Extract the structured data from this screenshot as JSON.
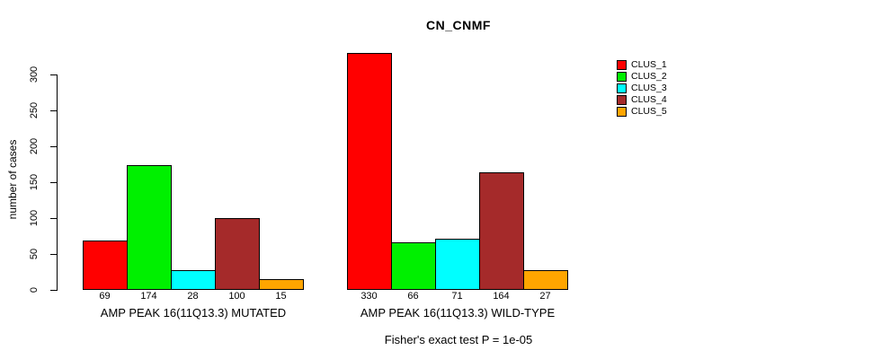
{
  "chart_data": {
    "type": "bar",
    "title": "CN_CNMF",
    "ylabel": "number of cases",
    "xlabel": "",
    "ylim": [
      0,
      330
    ],
    "yticks": [
      0,
      50,
      100,
      150,
      200,
      250,
      300
    ],
    "grid": false,
    "legend_position": "top-right",
    "legend_labels": [
      "CLUS_1",
      "CLUS_2",
      "CLUS_3",
      "CLUS_4",
      "CLUS_5"
    ],
    "colors": [
      "#FF0000",
      "#00F000",
      "#00FFFF",
      "#A52A2A",
      "#FFA500"
    ],
    "categories": [
      "AMP PEAK 16(11Q13.3) MUTATED",
      "AMP PEAK 16(11Q13.3) WILD-TYPE"
    ],
    "series": [
      {
        "name": "CLUS_1",
        "values": [
          69,
          330
        ]
      },
      {
        "name": "CLUS_2",
        "values": [
          174,
          66
        ]
      },
      {
        "name": "CLUS_3",
        "values": [
          28,
          71
        ]
      },
      {
        "name": "CLUS_4",
        "values": [
          100,
          164
        ]
      },
      {
        "name": "CLUS_5",
        "values": [
          15,
          27
        ]
      }
    ],
    "bar_value_labels": true,
    "footnote": "Fisher's exact test P = 1e-05"
  }
}
